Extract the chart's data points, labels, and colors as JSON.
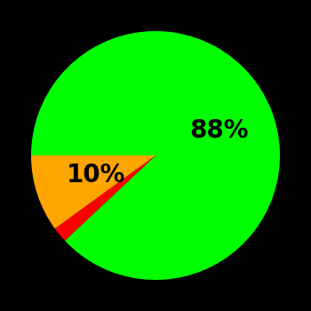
{
  "slices": [
    88,
    2,
    10
  ],
  "colors": [
    "#00ff00",
    "#ff0000",
    "#ffa500"
  ],
  "labels": [
    "88%",
    "",
    "10%"
  ],
  "background_color": "#000000",
  "text_color": "#000000",
  "startangle": 180,
  "label_distance_green": 0.55,
  "label_distance_yellow": 0.5,
  "font_size": 20,
  "font_weight": "bold"
}
